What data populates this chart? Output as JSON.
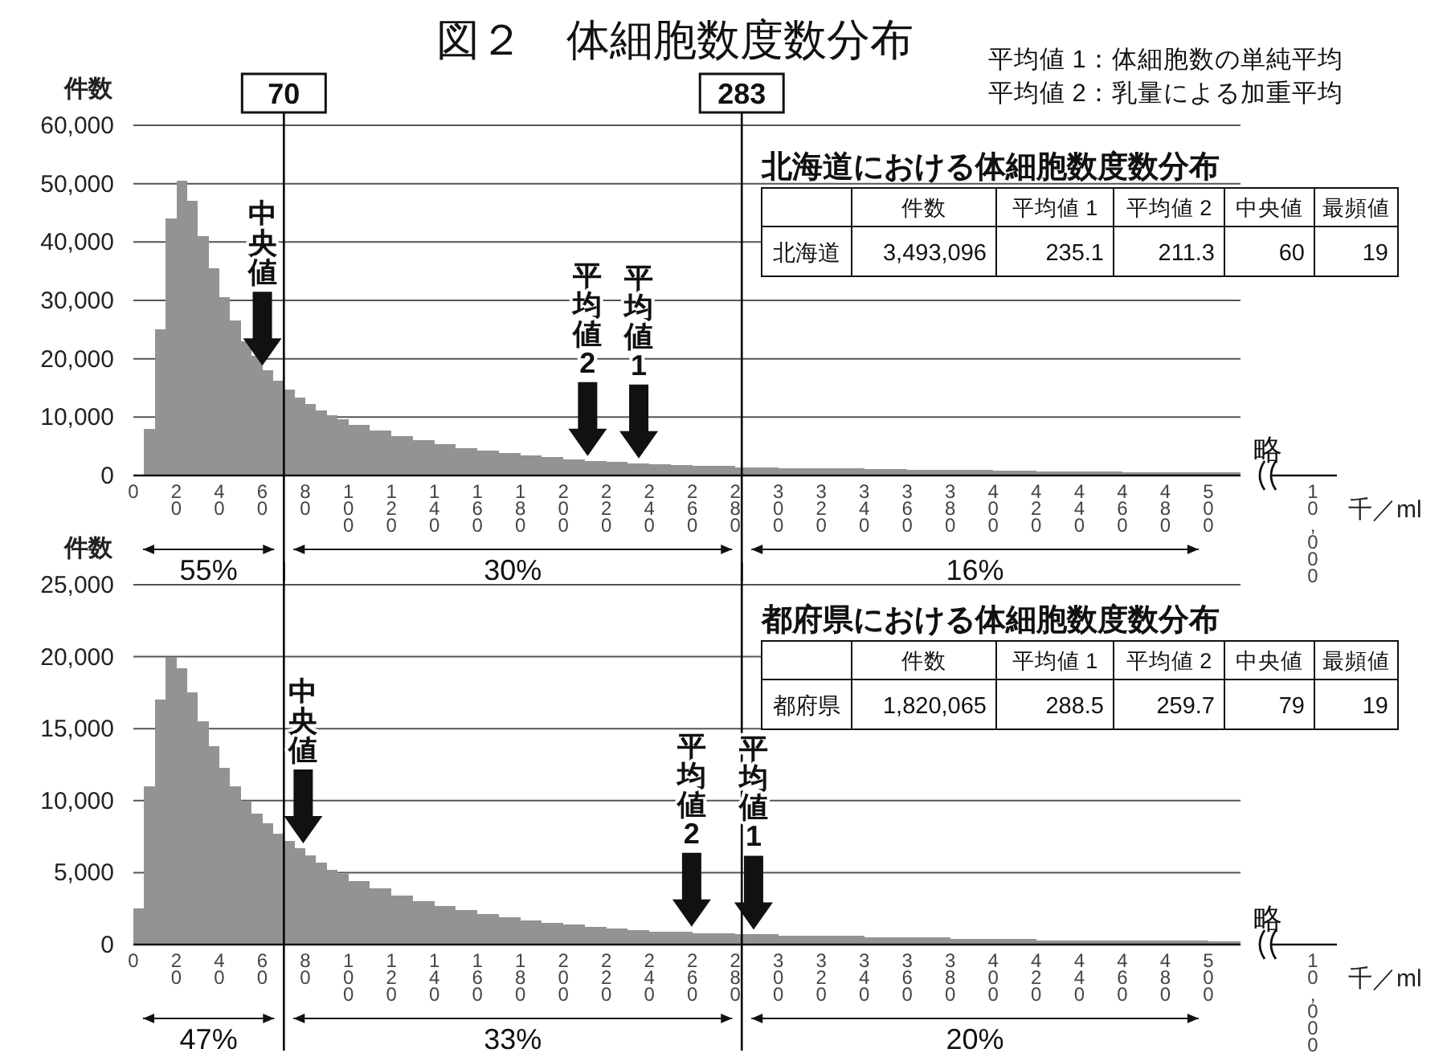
{
  "chart_data": [
    {
      "type": "histogram",
      "title": "図２　体細胞数度数分布",
      "xlabel": "千／ml",
      "ylabel": "件数",
      "bins": [
        5,
        10,
        15,
        20,
        25,
        30,
        35,
        40,
        45,
        50,
        55,
        60,
        65,
        70,
        75,
        80,
        85,
        90,
        95,
        100,
        110,
        120,
        130,
        140,
        150,
        160,
        170,
        180,
        190,
        200,
        210,
        220,
        230,
        240,
        250,
        260,
        270,
        280,
        300,
        320,
        340,
        360,
        380,
        400,
        420,
        440,
        460,
        480,
        500,
        515
      ],
      "series": [
        {
          "color": "#939396",
          "values": [
            8000,
            25000,
            44000,
            50500,
            47000,
            41000,
            35500,
            30500,
            26500,
            23000,
            20500,
            18000,
            16200,
            14700,
            13300,
            12200,
            11200,
            10300,
            9600,
            8700,
            7700,
            6800,
            6000,
            5300,
            4700,
            4200,
            3800,
            3400,
            3100,
            2800,
            2500,
            2300,
            2100,
            1900,
            1800,
            1700,
            1600,
            1400,
            1300,
            1200,
            1100,
            1000,
            900,
            800,
            700,
            700,
            600,
            600,
            500
          ]
        }
      ],
      "xlim": [
        0,
        515
      ],
      "xticks": [
        0,
        20,
        40,
        60,
        80,
        100,
        120,
        140,
        160,
        180,
        200,
        220,
        240,
        260,
        280,
        300,
        320,
        340,
        360,
        380,
        400,
        420,
        440,
        460,
        480,
        500
      ],
      "ylim": [
        0,
        60000
      ],
      "yticks": [
        {
          "value": 0,
          "label": "0"
        },
        {
          "value": 10000,
          "label": "10,000"
        },
        {
          "value": 20000,
          "label": "20,000"
        },
        {
          "value": 30000,
          "label": "30,000"
        },
        {
          "value": 40000,
          "label": "40,000"
        },
        {
          "value": 50000,
          "label": "50,000"
        },
        {
          "value": 60000,
          "label": "60,000"
        }
      ],
      "grid": "y",
      "ref_lines": [
        {
          "axis": "x",
          "value": 70,
          "label": "70",
          "color": "#000000"
        },
        {
          "axis": "x",
          "value": 283,
          "label": "283",
          "color": "#000000"
        }
      ],
      "annotations": [
        "55%",
        "30%",
        "16%",
        "略",
        "10,000",
        {
          "text": "中央値",
          "x": 60,
          "y": 18000
        },
        {
          "text": "平均値2",
          "x": 211.3,
          "y": 2500
        },
        {
          "text": "平均値1",
          "x": 235.1,
          "y": 2100
        }
      ]
    },
    {
      "type": "other",
      "title": "北海道における体細胞数度数分布",
      "categories": [
        null,
        "件数",
        "平均値 1",
        "平均値 2",
        "中央値",
        "最頻値"
      ],
      "y_categories": [
        "北海道"
      ],
      "cell_labels": [
        [
          "3,493,096",
          "235.1",
          "211.3",
          "60",
          "19"
        ]
      ],
      "annotations": [
        "平均値 1：体細胞数の単純平均",
        "平均値 2：乳量による加重平均"
      ]
    },
    {
      "type": "histogram",
      "xlabel": "千／ml",
      "ylabel": "件数",
      "bins": [
        0,
        5,
        10,
        15,
        20,
        25,
        30,
        35,
        40,
        45,
        50,
        55,
        60,
        65,
        70,
        75,
        80,
        85,
        90,
        95,
        100,
        110,
        120,
        130,
        140,
        150,
        160,
        170,
        180,
        190,
        200,
        210,
        220,
        230,
        240,
        250,
        260,
        270,
        280,
        300,
        320,
        340,
        360,
        380,
        400,
        420,
        440,
        460,
        480,
        500,
        515
      ],
      "series": [
        {
          "color": "#939396",
          "values": [
            2500,
            11000,
            17000,
            20000,
            19200,
            17500,
            15500,
            13800,
            12300,
            11000,
            10000,
            9100,
            8400,
            7700,
            7200,
            6700,
            6200,
            5700,
            5200,
            4900,
            4400,
            3900,
            3400,
            3000,
            2700,
            2400,
            2100,
            1900,
            1700,
            1500,
            1400,
            1200,
            1100,
            1000,
            900,
            900,
            800,
            800,
            700,
            600,
            600,
            500,
            500,
            400,
            400,
            300,
            300,
            300,
            300,
            200
          ]
        }
      ],
      "xlim": [
        0,
        515
      ],
      "xticks": [
        0,
        20,
        40,
        60,
        80,
        100,
        120,
        140,
        160,
        180,
        200,
        220,
        240,
        260,
        280,
        300,
        320,
        340,
        360,
        380,
        400,
        420,
        440,
        460,
        480,
        500
      ],
      "ylim": [
        0,
        25000
      ],
      "yticks": [
        {
          "value": 0,
          "label": "0"
        },
        {
          "value": 5000,
          "label": "5,000"
        },
        {
          "value": 10000,
          "label": "10,000"
        },
        {
          "value": 15000,
          "label": "15,000"
        },
        {
          "value": 20000,
          "label": "20,000"
        },
        {
          "value": 25000,
          "label": "25,000"
        }
      ],
      "grid": "y",
      "ref_lines": [
        {
          "axis": "x",
          "value": 70,
          "color": "#000000"
        },
        {
          "axis": "x",
          "value": 283,
          "color": "#000000"
        }
      ],
      "annotations": [
        "47%",
        "33%",
        "20%",
        "略",
        "10,000",
        {
          "text": "中央値",
          "x": 79,
          "y": 6700
        },
        {
          "text": "平均値2",
          "x": 259.7,
          "y": 900
        },
        {
          "text": "平均値1",
          "x": 288.5,
          "y": 700
        }
      ]
    },
    {
      "type": "other",
      "title": "都府県における体細胞数度数分布",
      "categories": [
        null,
        "件数",
        "平均値 1",
        "平均値 2",
        "中央値",
        "最頻値"
      ],
      "y_categories": [
        "都府県"
      ],
      "cell_labels": [
        [
          "1,820,065",
          "288.5",
          "259.7",
          "79",
          "19"
        ]
      ]
    }
  ]
}
